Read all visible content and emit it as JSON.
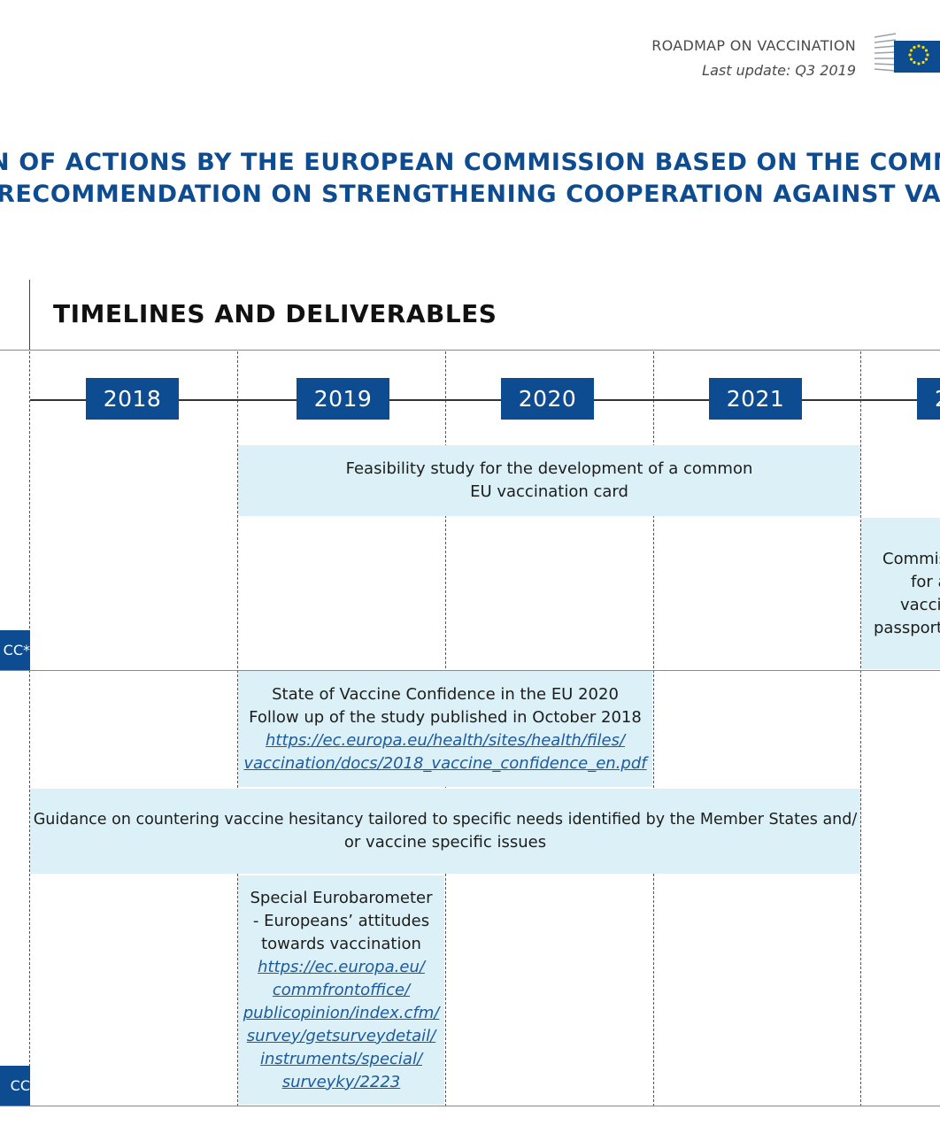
{
  "header": {
    "title": "ROADMAP ON VACCINATION",
    "last_update": "Last update: Q3 2019"
  },
  "main_title": {
    "line1": "N OF ACTIONS BY THE EUROPEAN COMMISSION BASED ON THE COMMISSION",
    "line2": "RECOMMENDATION ON STRENGTHENING COOPERATION AGAINST VACCINE"
  },
  "section_title": "TIMELINES AND DELIVERABLES",
  "years": [
    "2018",
    "2019",
    "2020",
    "2021",
    "2"
  ],
  "side_tags": [
    "CC*",
    "CC"
  ],
  "deliverables": {
    "feasibility": {
      "line1": "Feasibility study for the development of a common",
      "line2": "EU vaccination card"
    },
    "commission": {
      "line1": "Commis",
      "line2": "for a",
      "line3": "vacci",
      "line4": "passport"
    },
    "confidence": {
      "line1": "State of Vaccine Confidence in the EU 2020",
      "line2": "Follow up of the study published in October 2018",
      "link1": "https://ec.europa.eu/health/sites/health/files/",
      "link2": "vaccination/docs/2018_vaccine_confidence_en.pdf"
    },
    "guidance": {
      "line1": "Guidance on countering vaccine hesitancy tailored to specific needs identified by the Member States and/",
      "line2": "or vaccine specific issues"
    },
    "eurobarometer": {
      "line1": "Special Eurobarometer",
      "line2": "- Europeans’ attitudes",
      "line3": "towards vaccination",
      "link1": "https://ec.europa.eu/",
      "link2": "commfrontoffice/",
      "link3": "publicopinion/index.cfm/",
      "link4": "survey/getsurveydetail/",
      "link5": "instruments/special/",
      "link6": "surveyky/2223"
    }
  },
  "colors": {
    "brand_blue": "#0e4c92",
    "box_fill": "#dcf0f8",
    "eu_yellow": "#ffdd00"
  },
  "icons": {
    "logo": "european-commission-logo"
  }
}
